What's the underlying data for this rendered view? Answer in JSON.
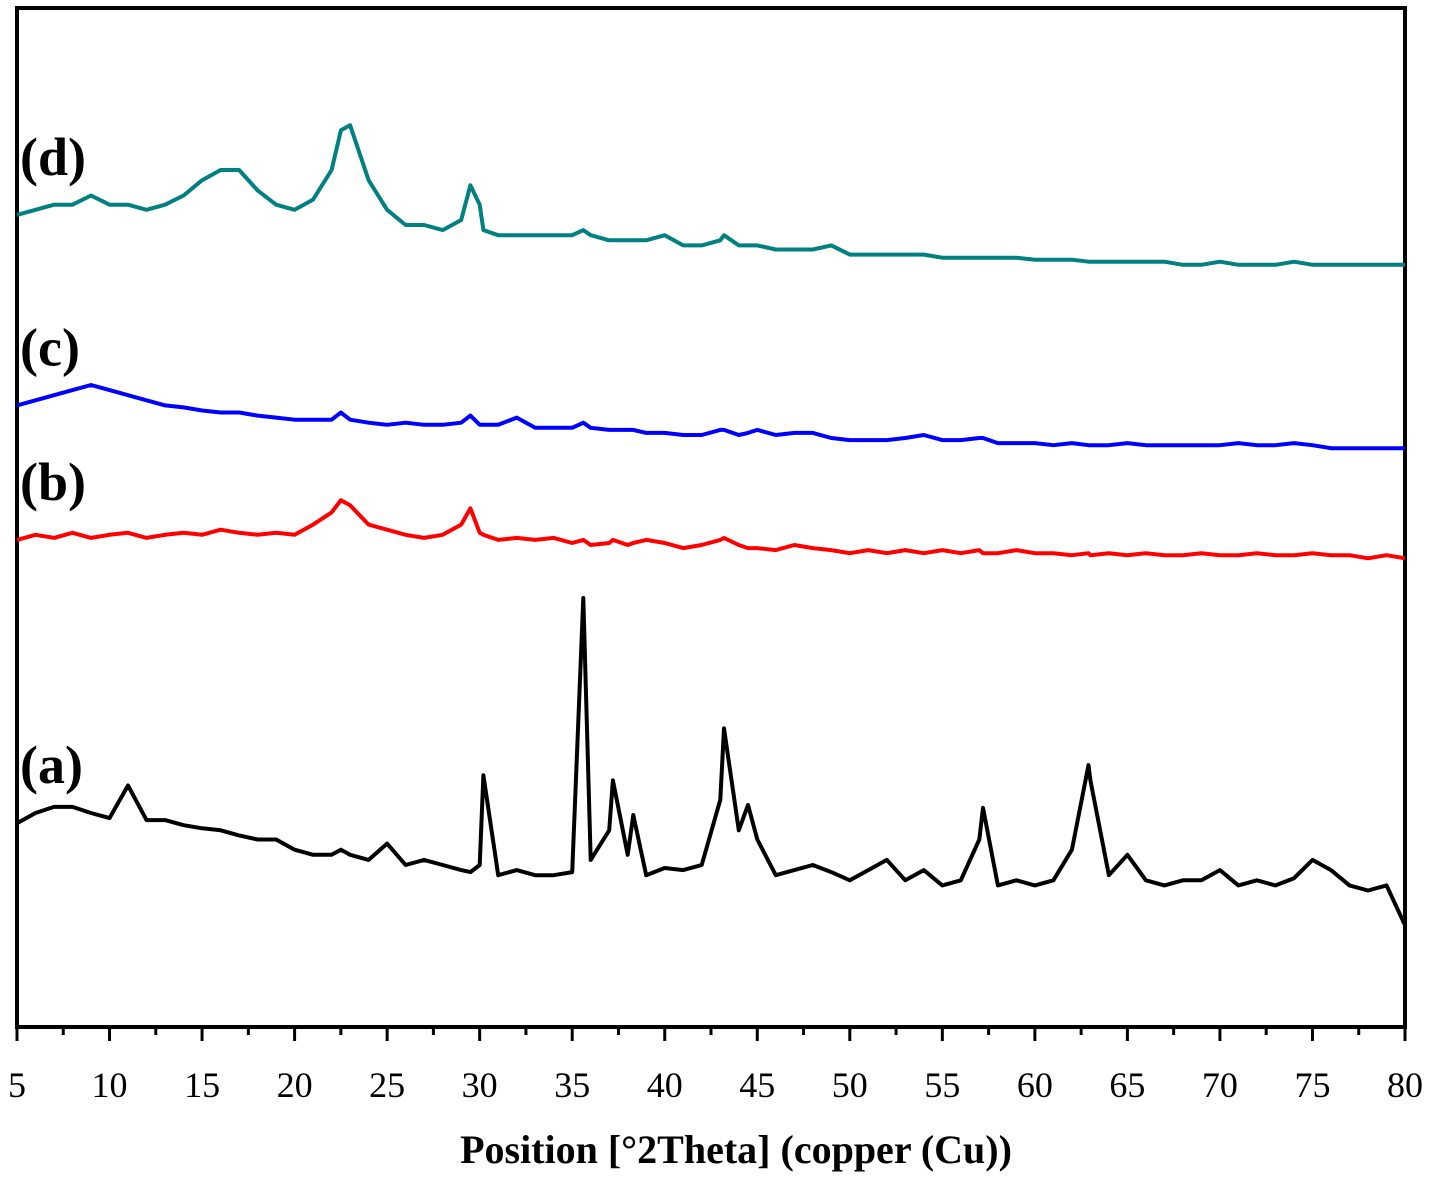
{
  "chart_data": {
    "type": "line",
    "xlabel": "Position [°2Theta] (copper (Cu))",
    "xlim": [
      5,
      80
    ],
    "ylim": [
      0,
      100
    ],
    "xticks": [
      5,
      10,
      15,
      20,
      25,
      30,
      35,
      40,
      45,
      50,
      55,
      60,
      65,
      70,
      75,
      80
    ],
    "x": [
      5,
      6,
      7,
      8,
      9,
      10,
      11,
      12,
      13,
      14,
      15,
      16,
      17,
      18,
      19,
      20,
      21,
      22,
      22.5,
      23,
      24,
      25,
      26,
      27,
      28,
      29,
      29.5,
      30,
      30.2,
      31,
      32,
      33,
      34,
      35,
      35.6,
      36,
      37,
      37.2,
      38,
      38.3,
      39,
      40,
      41,
      42,
      43,
      43.2,
      44,
      44.5,
      45,
      46,
      47,
      48,
      49,
      50,
      51,
      52,
      53,
      54,
      55,
      56,
      57,
      57.2,
      58,
      59,
      60,
      61,
      62,
      62.9,
      63,
      64,
      65,
      66,
      67,
      68,
      69,
      70,
      71,
      72,
      73,
      74,
      75,
      76,
      77,
      78,
      79,
      80
    ],
    "series": [
      {
        "name": "(a)",
        "color": "#000000",
        "values": [
          20.0,
          21.0,
          21.6,
          21.6,
          21.0,
          20.5,
          23.7,
          20.3,
          20.3,
          19.8,
          19.5,
          19.3,
          18.8,
          18.4,
          18.4,
          17.4,
          16.9,
          16.9,
          17.4,
          16.9,
          16.4,
          18.0,
          15.9,
          16.4,
          15.9,
          15.4,
          15.2,
          15.9,
          24.7,
          14.9,
          15.4,
          14.9,
          14.9,
          15.2,
          42.1,
          16.4,
          19.3,
          24.2,
          16.9,
          20.8,
          14.9,
          15.6,
          15.4,
          15.9,
          22.3,
          29.3,
          19.3,
          21.8,
          18.4,
          14.9,
          15.4,
          15.9,
          15.2,
          14.4,
          15.4,
          16.4,
          14.4,
          15.4,
          13.9,
          14.4,
          18.4,
          21.5,
          13.9,
          14.4,
          13.9,
          14.4,
          17.4,
          25.7,
          24.2,
          14.9,
          16.9,
          14.4,
          13.9,
          14.4,
          14.4,
          15.4,
          13.9,
          14.4,
          13.9,
          14.6,
          16.4,
          15.4,
          13.9,
          13.4,
          13.9,
          10.0
        ]
      },
      {
        "name": "(b)",
        "color": "#ff0000",
        "values": [
          47.8,
          48.3,
          48.0,
          48.5,
          48.0,
          48.3,
          48.5,
          48.0,
          48.3,
          48.5,
          48.3,
          48.8,
          48.5,
          48.3,
          48.5,
          48.3,
          49.3,
          50.5,
          51.7,
          51.2,
          49.3,
          48.8,
          48.3,
          48.0,
          48.3,
          49.3,
          50.9,
          48.5,
          48.3,
          47.8,
          48.0,
          47.8,
          48.0,
          47.5,
          47.8,
          47.3,
          47.5,
          47.8,
          47.3,
          47.5,
          47.8,
          47.5,
          47.0,
          47.3,
          47.8,
          48.0,
          47.3,
          47.0,
          47.0,
          46.8,
          47.3,
          47.0,
          46.8,
          46.5,
          46.8,
          46.5,
          46.8,
          46.5,
          46.8,
          46.5,
          46.8,
          46.5,
          46.5,
          46.8,
          46.5,
          46.5,
          46.3,
          46.5,
          46.3,
          46.5,
          46.3,
          46.5,
          46.3,
          46.3,
          46.5,
          46.3,
          46.3,
          46.5,
          46.3,
          46.3,
          46.5,
          46.3,
          46.3,
          46.0,
          46.3,
          46.0
        ]
      },
      {
        "name": "(c)",
        "color": "#0000ff",
        "values": [
          61.0,
          61.5,
          62.0,
          62.5,
          63.0,
          62.5,
          62.0,
          61.5,
          61.0,
          60.8,
          60.5,
          60.3,
          60.3,
          60.0,
          59.8,
          59.6,
          59.6,
          59.6,
          60.3,
          59.6,
          59.3,
          59.1,
          59.3,
          59.1,
          59.1,
          59.3,
          60.0,
          59.1,
          59.1,
          59.1,
          59.8,
          58.8,
          58.8,
          58.8,
          59.3,
          58.8,
          58.6,
          58.6,
          58.6,
          58.6,
          58.3,
          58.3,
          58.1,
          58.1,
          58.6,
          58.6,
          58.1,
          58.3,
          58.6,
          58.1,
          58.3,
          58.3,
          57.8,
          57.6,
          57.6,
          57.6,
          57.8,
          58.1,
          57.6,
          57.6,
          57.8,
          57.8,
          57.3,
          57.3,
          57.3,
          57.1,
          57.3,
          57.1,
          57.1,
          57.1,
          57.3,
          57.1,
          57.1,
          57.1,
          57.1,
          57.1,
          57.3,
          57.1,
          57.1,
          57.3,
          57.1,
          56.8,
          56.8,
          56.8,
          56.8,
          56.8
        ]
      },
      {
        "name": "(d)",
        "color": "#008080",
        "values": [
          79.7,
          80.2,
          80.7,
          80.7,
          81.6,
          80.7,
          80.7,
          80.2,
          80.7,
          81.6,
          83.1,
          84.1,
          84.1,
          82.1,
          80.7,
          80.2,
          81.2,
          84.1,
          88.0,
          88.5,
          83.1,
          80.2,
          78.7,
          78.7,
          78.2,
          79.2,
          82.6,
          80.7,
          78.2,
          77.7,
          77.7,
          77.7,
          77.7,
          77.7,
          78.2,
          77.7,
          77.2,
          77.2,
          77.2,
          77.2,
          77.2,
          77.7,
          76.7,
          76.7,
          77.2,
          77.7,
          76.7,
          76.7,
          76.7,
          76.3,
          76.3,
          76.3,
          76.7,
          75.8,
          75.8,
          75.8,
          75.8,
          75.8,
          75.5,
          75.5,
          75.5,
          75.5,
          75.5,
          75.5,
          75.3,
          75.3,
          75.3,
          75.1,
          75.1,
          75.1,
          75.1,
          75.1,
          75.1,
          74.8,
          74.8,
          75.1,
          74.8,
          74.8,
          74.8,
          75.1,
          74.8,
          74.8,
          74.8,
          74.8,
          74.8,
          74.8
        ]
      }
    ]
  }
}
